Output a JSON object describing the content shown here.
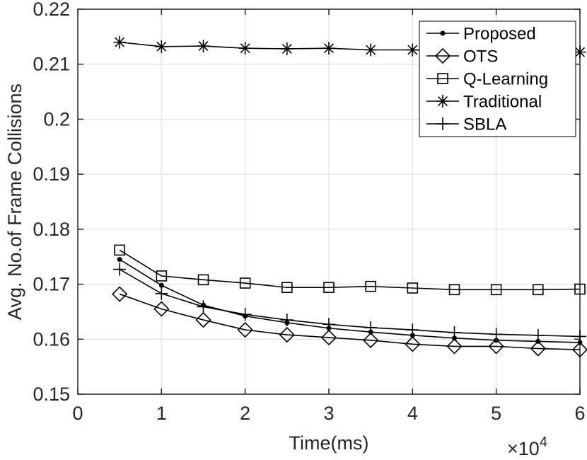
{
  "chart_data": {
    "type": "line",
    "title": "",
    "xlabel": "Time(ms)",
    "ylabel": "Avg. No.of Frame Collisions",
    "x_multiplier_label": "×10",
    "x_multiplier_exp": "4",
    "xlim": [
      0,
      6
    ],
    "ylim": [
      0.15,
      0.22
    ],
    "xticks": [
      0,
      1,
      2,
      3,
      4,
      5,
      6
    ],
    "xtick_labels": [
      "0",
      "1",
      "2",
      "3",
      "4",
      "5",
      "6"
    ],
    "yticks": [
      0.15,
      0.16,
      0.17,
      0.18,
      0.19,
      0.2,
      0.21,
      0.22
    ],
    "ytick_labels": [
      "0.15",
      "0.16",
      "0.17",
      "0.18",
      "0.19",
      "0.2",
      "0.21",
      "0.22"
    ],
    "grid": true,
    "legend_position": "top-right",
    "x": [
      0.5,
      1,
      1.5,
      2,
      2.5,
      3,
      3.5,
      4,
      4.5,
      5,
      5.5,
      6
    ],
    "series": [
      {
        "name": "Proposed",
        "marker": "dot",
        "values": [
          0.1745,
          0.1698,
          0.1662,
          0.1642,
          0.163,
          0.162,
          0.1613,
          0.1607,
          0.1602,
          0.1598,
          0.1596,
          0.1594
        ]
      },
      {
        "name": "OTS",
        "marker": "diamond",
        "values": [
          0.1682,
          0.1655,
          0.1635,
          0.1617,
          0.1608,
          0.1603,
          0.1598,
          0.1591,
          0.1587,
          0.1587,
          0.1583,
          0.1581
        ]
      },
      {
        "name": "Q-Learning",
        "marker": "square",
        "values": [
          0.1762,
          0.1715,
          0.1708,
          0.1702,
          0.1694,
          0.1694,
          0.1696,
          0.1693,
          0.169,
          0.169,
          0.169,
          0.1691
        ]
      },
      {
        "name": "Traditional",
        "marker": "star",
        "values": [
          0.214,
          0.2132,
          0.2133,
          0.2129,
          0.2128,
          0.2129,
          0.2126,
          0.2126,
          0.2124,
          0.2124,
          0.2123,
          0.2122
        ]
      },
      {
        "name": "SBLA",
        "marker": "plus",
        "values": [
          0.1727,
          0.1683,
          0.1659,
          0.1645,
          0.1635,
          0.1627,
          0.1621,
          0.1617,
          0.1612,
          0.1609,
          0.1607,
          0.1605
        ]
      }
    ]
  }
}
